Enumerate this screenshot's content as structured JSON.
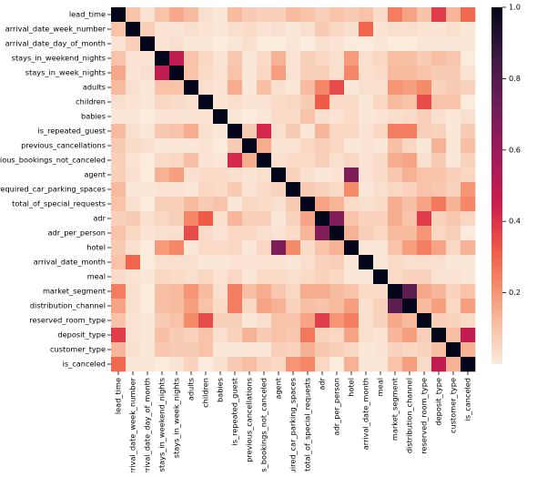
{
  "chart_data": {
    "type": "heatmap",
    "title": "",
    "xlabel": "",
    "ylabel": "",
    "labels": [
      "lead_time",
      "arrival_date_week_number",
      "arrival_date_day_of_month",
      "stays_in_weekend_nights",
      "stays_in_week_nights",
      "adults",
      "children",
      "babies",
      "is_repeated_guest",
      "previous_cancellations",
      "previous_bookings_not_canceled",
      "agent",
      "required_car_parking_spaces",
      "total_of_special_requests",
      "adr",
      "adr_per_person",
      "hotel",
      "arrival_date_month",
      "meal",
      "market_segment",
      "distribution_channel",
      "reserved_room_type",
      "deposit_type",
      "customer_type",
      "is_canceled"
    ],
    "values": [
      [
        1.0,
        0.1,
        0.02,
        0.1,
        0.16,
        0.12,
        0.03,
        0.01,
        0.12,
        0.08,
        0.07,
        0.07,
        0.12,
        0.1,
        0.07,
        0.1,
        0.08,
        0.1,
        0.04,
        0.25,
        0.17,
        0.1,
        0.38,
        0.13,
        0.29
      ],
      [
        0.1,
        1.0,
        0.07,
        0.02,
        0.02,
        0.03,
        0.02,
        0.01,
        0.03,
        0.04,
        0.02,
        0.03,
        0.01,
        0.03,
        0.08,
        0.05,
        0.03,
        0.3,
        0.02,
        0.03,
        0.03,
        0.02,
        0.02,
        0.03,
        0.01
      ],
      [
        0.02,
        0.07,
        1.0,
        0.02,
        0.03,
        0.01,
        0.01,
        0.0,
        0.01,
        0.03,
        0.0,
        0.0,
        0.01,
        0.0,
        0.03,
        0.02,
        0.0,
        0.0,
        0.01,
        0.0,
        0.0,
        0.01,
        0.01,
        0.01,
        0.01
      ],
      [
        0.1,
        0.02,
        0.02,
        1.0,
        0.49,
        0.1,
        0.05,
        0.02,
        0.09,
        0.01,
        0.04,
        0.14,
        0.02,
        0.07,
        0.05,
        0.03,
        0.19,
        0.03,
        0.05,
        0.11,
        0.11,
        0.08,
        0.11,
        0.09,
        0.0
      ],
      [
        0.16,
        0.02,
        0.03,
        0.49,
        1.0,
        0.1,
        0.04,
        0.02,
        0.1,
        0.01,
        0.05,
        0.18,
        0.02,
        0.07,
        0.07,
        0.03,
        0.23,
        0.03,
        0.04,
        0.12,
        0.12,
        0.1,
        0.08,
        0.08,
        0.02
      ],
      [
        0.12,
        0.03,
        0.01,
        0.1,
        0.1,
        1.0,
        0.03,
        0.02,
        0.15,
        0.01,
        0.11,
        0.03,
        0.01,
        0.12,
        0.23,
        0.35,
        0.01,
        0.03,
        0.03,
        0.2,
        0.18,
        0.22,
        0.06,
        0.08,
        0.06
      ],
      [
        0.03,
        0.02,
        0.01,
        0.05,
        0.04,
        0.03,
        1.0,
        0.02,
        0.03,
        0.02,
        0.02,
        0.04,
        0.05,
        0.08,
        0.32,
        0.04,
        0.04,
        0.01,
        0.05,
        0.12,
        0.1,
        0.35,
        0.1,
        0.1,
        0.0
      ],
      [
        0.01,
        0.01,
        0.0,
        0.02,
        0.02,
        0.02,
        0.02,
        1.0,
        0.01,
        0.0,
        0.01,
        0.04,
        0.04,
        0.1,
        0.03,
        0.02,
        0.04,
        0.01,
        0.02,
        0.03,
        0.04,
        0.07,
        0.03,
        0.01,
        0.03
      ],
      [
        0.12,
        0.03,
        0.01,
        0.09,
        0.1,
        0.15,
        0.03,
        0.01,
        1.0,
        0.08,
        0.42,
        0.03,
        0.08,
        0.01,
        0.13,
        0.05,
        0.05,
        0.02,
        0.05,
        0.25,
        0.25,
        0.07,
        0.06,
        0.01,
        0.08
      ],
      [
        0.08,
        0.04,
        0.03,
        0.01,
        0.01,
        0.01,
        0.02,
        0.0,
        0.08,
        1.0,
        0.15,
        0.02,
        0.02,
        0.05,
        0.07,
        0.05,
        0.01,
        0.02,
        0.01,
        0.11,
        0.05,
        0.01,
        0.14,
        0.01,
        0.11
      ],
      [
        0.07,
        0.02,
        0.0,
        0.04,
        0.05,
        0.11,
        0.02,
        0.01,
        0.42,
        0.15,
        1.0,
        0.03,
        0.04,
        0.04,
        0.07,
        0.03,
        0.05,
        0.02,
        0.04,
        0.15,
        0.17,
        0.03,
        0.08,
        0.01,
        0.06
      ],
      [
        0.07,
        0.03,
        0.0,
        0.14,
        0.18,
        0.03,
        0.04,
        0.04,
        0.03,
        0.02,
        0.03,
        1.0,
        0.06,
        0.03,
        0.01,
        0.02,
        0.68,
        0.02,
        0.04,
        0.09,
        0.14,
        0.1,
        0.1,
        0.07,
        0.05
      ],
      [
        0.12,
        0.01,
        0.01,
        0.02,
        0.02,
        0.01,
        0.05,
        0.04,
        0.08,
        0.02,
        0.04,
        0.06,
        1.0,
        0.08,
        0.06,
        0.04,
        0.22,
        0.01,
        0.03,
        0.05,
        0.06,
        0.1,
        0.09,
        0.06,
        0.2
      ],
      [
        0.1,
        0.03,
        0.0,
        0.07,
        0.07,
        0.12,
        0.08,
        0.1,
        0.01,
        0.05,
        0.04,
        0.03,
        0.08,
        1.0,
        0.17,
        0.13,
        0.04,
        0.03,
        0.04,
        0.15,
        0.11,
        0.17,
        0.26,
        0.14,
        0.23
      ],
      [
        0.07,
        0.08,
        0.03,
        0.05,
        0.07,
        0.23,
        0.32,
        0.03,
        0.13,
        0.07,
        0.07,
        0.01,
        0.06,
        0.17,
        1.0,
        0.67,
        0.1,
        0.06,
        0.06,
        0.15,
        0.1,
        0.38,
        0.06,
        0.09,
        0.05
      ],
      [
        0.1,
        0.05,
        0.02,
        0.03,
        0.03,
        0.35,
        0.04,
        0.02,
        0.05,
        0.05,
        0.03,
        0.02,
        0.04,
        0.13,
        0.67,
        1.0,
        0.14,
        0.07,
        0.05,
        0.12,
        0.12,
        0.2,
        0.05,
        0.07,
        0.0
      ],
      [
        0.08,
        0.03,
        0.0,
        0.19,
        0.23,
        0.01,
        0.04,
        0.04,
        0.05,
        0.01,
        0.05,
        0.68,
        0.22,
        0.04,
        0.1,
        0.14,
        1.0,
        0.01,
        0.01,
        0.1,
        0.18,
        0.25,
        0.17,
        0.05,
        0.14
      ],
      [
        0.1,
        0.3,
        0.0,
        0.03,
        0.03,
        0.03,
        0.01,
        0.01,
        0.02,
        0.02,
        0.02,
        0.02,
        0.01,
        0.03,
        0.06,
        0.07,
        0.01,
        1.0,
        0.01,
        0.04,
        0.03,
        0.03,
        0.03,
        0.01,
        0.01
      ],
      [
        0.04,
        0.02,
        0.01,
        0.05,
        0.04,
        0.03,
        0.05,
        0.02,
        0.05,
        0.01,
        0.04,
        0.04,
        0.03,
        0.04,
        0.06,
        0.05,
        0.01,
        0.01,
        1.0,
        0.04,
        0.06,
        0.06,
        0.02,
        0.02,
        0.01
      ],
      [
        0.25,
        0.03,
        0.0,
        0.11,
        0.12,
        0.2,
        0.12,
        0.03,
        0.25,
        0.11,
        0.15,
        0.09,
        0.05,
        0.15,
        0.15,
        0.12,
        0.1,
        0.04,
        0.04,
        1.0,
        0.77,
        0.16,
        0.13,
        0.06,
        0.1
      ],
      [
        0.17,
        0.03,
        0.0,
        0.11,
        0.12,
        0.18,
        0.1,
        0.04,
        0.25,
        0.05,
        0.17,
        0.14,
        0.06,
        0.11,
        0.1,
        0.12,
        0.18,
        0.03,
        0.06,
        0.77,
        1.0,
        0.12,
        0.18,
        0.05,
        0.18
      ],
      [
        0.1,
        0.02,
        0.01,
        0.08,
        0.1,
        0.22,
        0.35,
        0.07,
        0.07,
        0.01,
        0.03,
        0.1,
        0.1,
        0.17,
        0.38,
        0.2,
        0.25,
        0.03,
        0.06,
        0.16,
        0.12,
        1.0,
        0.07,
        0.06,
        0.04
      ],
      [
        0.38,
        0.02,
        0.01,
        0.11,
        0.08,
        0.06,
        0.1,
        0.03,
        0.06,
        0.14,
        0.08,
        0.1,
        0.09,
        0.26,
        0.06,
        0.05,
        0.17,
        0.03,
        0.02,
        0.13,
        0.18,
        0.07,
        1.0,
        0.11,
        0.48
      ],
      [
        0.13,
        0.03,
        0.01,
        0.09,
        0.08,
        0.08,
        0.1,
        0.01,
        0.01,
        0.01,
        0.01,
        0.07,
        0.06,
        0.14,
        0.09,
        0.07,
        0.05,
        0.01,
        0.02,
        0.06,
        0.05,
        0.06,
        0.11,
        1.0,
        0.14
      ],
      [
        0.29,
        0.01,
        0.01,
        0.0,
        0.02,
        0.06,
        0.0,
        0.03,
        0.08,
        0.11,
        0.06,
        0.05,
        0.2,
        0.23,
        0.05,
        0.0,
        0.14,
        0.01,
        0.01,
        0.1,
        0.18,
        0.04,
        0.48,
        0.14,
        1.0
      ]
    ],
    "vmin": 0,
    "vmax": 1,
    "colormap": "rocket_r",
    "colorbar_ticks": [
      "0.2",
      "0.4",
      "0.6",
      "0.8",
      "1.0"
    ],
    "grid": false,
    "legend": "right"
  }
}
